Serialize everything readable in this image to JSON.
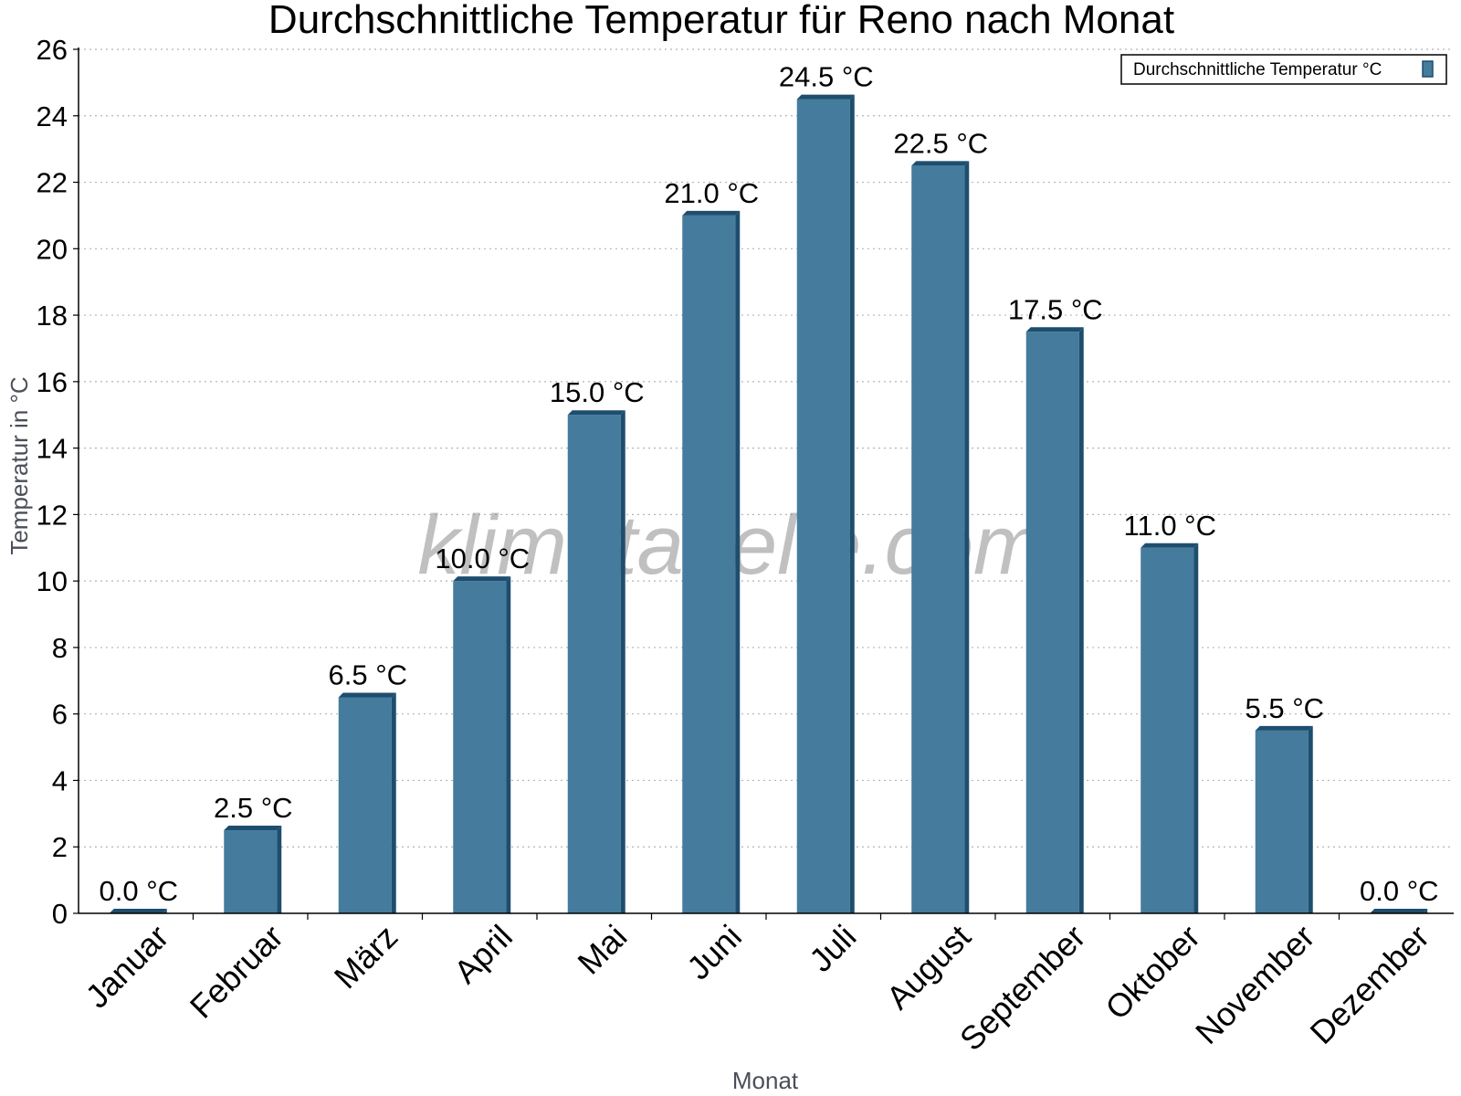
{
  "chart_data": {
    "type": "bar",
    "title": "Durchschnittliche Temperatur für Reno nach Monat",
    "xlabel": "Monat",
    "ylabel": "Temperatur in °C",
    "categories": [
      "Januar",
      "Februar",
      "März",
      "April",
      "Mai",
      "Juni",
      "Juli",
      "August",
      "September",
      "Oktober",
      "November",
      "Dezember"
    ],
    "series": [
      {
        "name": "Durchschnittliche Temperatur °C",
        "values": [
          0.0,
          2.5,
          6.5,
          10.0,
          15.0,
          21.0,
          24.5,
          22.5,
          17.5,
          11.0,
          5.5,
          0.0
        ],
        "labels": [
          "0.0 °C",
          "2.5 °C",
          "6.5 °C",
          "10.0 °C",
          "15.0 °C",
          "21.0 °C",
          "24.5 °C",
          "22.5 °C",
          "17.5 °C",
          "11.0 °C",
          "5.5 °C",
          "0.0 °C"
        ]
      }
    ],
    "ylim": [
      0,
      26
    ],
    "yticks": [
      "0",
      "2",
      "4",
      "6",
      "8",
      "10",
      "12",
      "14",
      "16",
      "18",
      "20",
      "22",
      "24",
      "26"
    ],
    "grid": true,
    "legend_position": "top-right",
    "colors": {
      "bar": "#457b9d",
      "bar_edge": "#1d4e6e"
    }
  },
  "watermark": "klimatabelle.com"
}
